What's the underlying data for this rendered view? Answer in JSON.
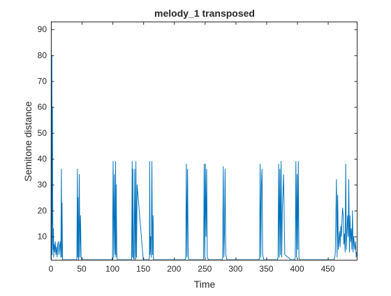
{
  "chart_data": {
    "type": "line",
    "title": "melody_1 transposed",
    "xlabel": "Time",
    "ylabel": "Semitone distance",
    "xlim": [
      0,
      497
    ],
    "ylim": [
      1,
      93
    ],
    "xticks": [
      0,
      50,
      100,
      150,
      200,
      250,
      300,
      350,
      400,
      450
    ],
    "yticks": [
      10,
      20,
      30,
      40,
      50,
      60,
      70,
      80,
      90
    ],
    "grid": false,
    "line_color": "#0072BD",
    "series": [
      {
        "x": [
          0,
          0.5,
          1,
          1.5,
          2,
          2.5,
          3,
          3.5,
          4,
          4.5,
          5,
          6,
          7,
          8,
          9,
          10,
          11,
          12,
          13,
          14,
          15,
          16,
          17,
          17.5,
          18,
          18.5,
          19,
          20,
          30,
          40,
          42,
          43,
          43.5,
          44,
          44.5,
          45,
          46,
          47,
          48,
          49,
          50,
          52,
          60,
          70,
          80,
          90,
          99,
          100,
          101,
          102,
          103,
          104,
          104.5,
          105,
          105.5,
          106,
          107,
          108,
          110,
          120,
          130,
          131,
          132,
          132.5,
          133,
          134,
          135,
          136,
          137,
          137.5,
          138,
          139,
          140,
          150,
          158,
          159,
          160,
          160.5,
          161,
          162,
          163,
          164,
          165,
          166,
          166.5,
          167,
          168,
          170,
          180,
          190,
          200,
          210,
          218,
          219,
          220,
          221,
          222,
          223,
          224,
          226,
          230,
          240,
          248,
          249,
          250,
          251,
          252,
          253,
          254,
          256,
          260,
          270,
          278,
          279,
          280,
          281,
          282,
          283,
          284,
          286,
          290,
          300,
          310,
          320,
          330,
          338,
          339,
          340,
          341,
          342,
          343,
          344,
          346,
          350,
          360,
          368,
          369,
          370,
          371,
          372,
          373,
          374,
          375,
          376,
          378,
          380,
          390,
          395,
          396,
          397,
          398,
          399,
          400,
          401,
          402,
          403,
          404,
          405,
          406,
          410,
          420,
          430,
          440,
          450,
          460,
          462,
          464,
          465,
          466,
          467,
          468,
          469,
          470,
          471,
          472,
          473,
          474,
          475,
          476,
          477,
          478,
          479,
          480,
          481,
          482,
          483,
          484,
          485,
          486,
          487,
          488,
          489,
          490,
          491,
          492,
          493,
          494,
          495,
          496,
          497
        ],
        "y": [
          1,
          93,
          15,
          80,
          3,
          60,
          12,
          5,
          13,
          2,
          7,
          4,
          8,
          3,
          6,
          2,
          7,
          8,
          3,
          6,
          8,
          2,
          36,
          2,
          23,
          9,
          1,
          1,
          1,
          1,
          1,
          36,
          2,
          25,
          3,
          1,
          34,
          2,
          18,
          2,
          1,
          1,
          1,
          1,
          1,
          1,
          1,
          2,
          39,
          2,
          34,
          5,
          3,
          39,
          2,
          30,
          3,
          1,
          1,
          1,
          1,
          1,
          39,
          2,
          36,
          2,
          1,
          36,
          3,
          1,
          39,
          2,
          30,
          1,
          1,
          1,
          2,
          39,
          3,
          10,
          2,
          39,
          3,
          18,
          1,
          1,
          1,
          1,
          1,
          1,
          1,
          1,
          1,
          2,
          38,
          2,
          36,
          3,
          1,
          1,
          1,
          1,
          1,
          38,
          2,
          38,
          10,
          36,
          2,
          1,
          1,
          1,
          1,
          2,
          37,
          2,
          12,
          36,
          3,
          1,
          1,
          1,
          1,
          1,
          1,
          1,
          2,
          38,
          2,
          30,
          36,
          3,
          1,
          1,
          1,
          1,
          2,
          38,
          2,
          36,
          3,
          39,
          2,
          20,
          34,
          3,
          1,
          1,
          1,
          2,
          39,
          2,
          34,
          5,
          39,
          2,
          1,
          1,
          1,
          1,
          1,
          1,
          1,
          1,
          1,
          3,
          32,
          2,
          26,
          5,
          8,
          12,
          6,
          14,
          10,
          17,
          21,
          18,
          7,
          11,
          4,
          38,
          5,
          12,
          18,
          10,
          32,
          4,
          18,
          8,
          13,
          5,
          20,
          4,
          10,
          7,
          5,
          8,
          2,
          4
        ]
      }
    ]
  }
}
